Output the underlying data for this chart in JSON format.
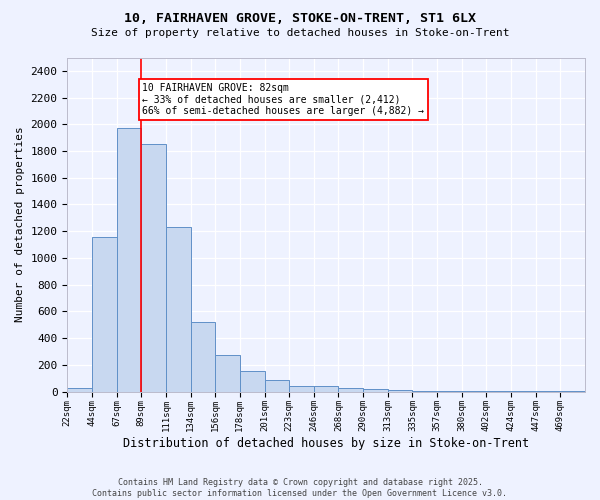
{
  "title_line1": "10, FAIRHAVEN GROVE, STOKE-ON-TRENT, ST1 6LX",
  "title_line2": "Size of property relative to detached houses in Stoke-on-Trent",
  "xlabel": "Distribution of detached houses by size in Stoke-on-Trent",
  "ylabel": "Number of detached properties",
  "bin_labels": [
    "22sqm",
    "44sqm",
    "67sqm",
    "89sqm",
    "111sqm",
    "134sqm",
    "156sqm",
    "178sqm",
    "201sqm",
    "223sqm",
    "246sqm",
    "268sqm",
    "290sqm",
    "313sqm",
    "335sqm",
    "357sqm",
    "380sqm",
    "402sqm",
    "424sqm",
    "447sqm",
    "469sqm"
  ],
  "bar_heights": [
    30,
    1160,
    1970,
    1850,
    1230,
    520,
    275,
    155,
    90,
    45,
    40,
    30,
    20,
    10,
    5,
    5,
    3,
    2,
    2,
    2,
    2
  ],
  "bar_color": "#c8d8f0",
  "bar_edge_color": "#6090c8",
  "bg_color": "#eef2ff",
  "grid_color": "#ffffff",
  "vline_color": "red",
  "annotation_text": "10 FAIRHAVEN GROVE: 82sqm\n← 33% of detached houses are smaller (2,412)\n66% of semi-detached houses are larger (4,882) →",
  "ylim": [
    0,
    2500
  ],
  "yticks": [
    0,
    200,
    400,
    600,
    800,
    1000,
    1200,
    1400,
    1600,
    1800,
    2000,
    2200,
    2400
  ],
  "vline_bin_index": 3,
  "footer_line1": "Contains HM Land Registry data © Crown copyright and database right 2025.",
  "footer_line2": "Contains public sector information licensed under the Open Government Licence v3.0."
}
